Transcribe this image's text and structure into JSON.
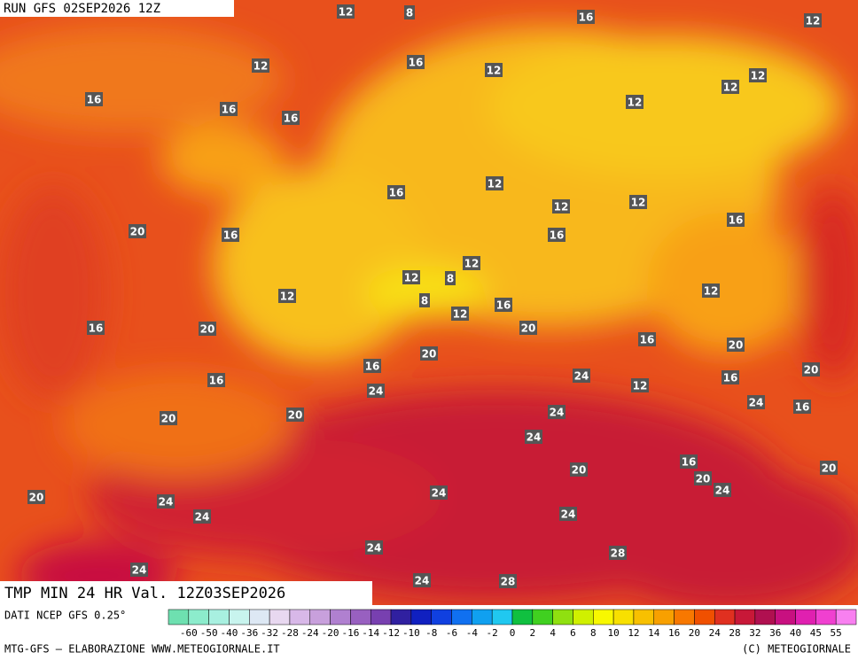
{
  "header": {
    "run": "RUN GFS 02SEP2026 12Z"
  },
  "map": {
    "labels": [
      12,
      8,
      16,
      12,
      12,
      16,
      12,
      12,
      16,
      12,
      12,
      16,
      16,
      16,
      12,
      12,
      12,
      20,
      16,
      16,
      16,
      12,
      12,
      8,
      12,
      12,
      8,
      16,
      12,
      16,
      20,
      20,
      16,
      20,
      16,
      20,
      20,
      16,
      24,
      16,
      12,
      24,
      24,
      16,
      20,
      24,
      20,
      24,
      16,
      20,
      20,
      20,
      24,
      24,
      20,
      24,
      24,
      24,
      24,
      28,
      24,
      24,
      28
    ]
  },
  "footer": {
    "title": "TMP MIN 24 HR Val. 12Z03SEP2026",
    "source": "DATI NCEP GFS 0.25°",
    "credit": "MTG-GFS — ELABORAZIONE WWW.METEOGIORNALE.IT",
    "copyright": "(C) METEOGIORNALE"
  },
  "colorbar": {
    "ticks": [
      -60,
      -50,
      -40,
      -36,
      -32,
      -28,
      -24,
      -20,
      -16,
      -14,
      -12,
      -10,
      -8,
      -6,
      -4,
      -2,
      0,
      2,
      4,
      6,
      8,
      10,
      12,
      14,
      16,
      20,
      24,
      28,
      32,
      36,
      40,
      45,
      55
    ],
    "colors": [
      "#6ee0b0",
      "#8ceccc",
      "#a8f0e0",
      "#c8f4ee",
      "#dde8f4",
      "#e8d8f0",
      "#d8b8e8",
      "#c8a0dc",
      "#b080d0",
      "#9860c0",
      "#7840b0",
      "#3020a0",
      "#1020c0",
      "#1040e0",
      "#1070f0",
      "#10a0f0",
      "#20c8f0",
      "#10c040",
      "#40d020",
      "#90e010",
      "#d0f000",
      "#f8f800",
      "#f8e000",
      "#f8c000",
      "#f8a000",
      "#f87800",
      "#f05000",
      "#e03020",
      "#c81838",
      "#b01050",
      "#c81080",
      "#e020b0",
      "#f040d0",
      "#f880f0"
    ]
  }
}
